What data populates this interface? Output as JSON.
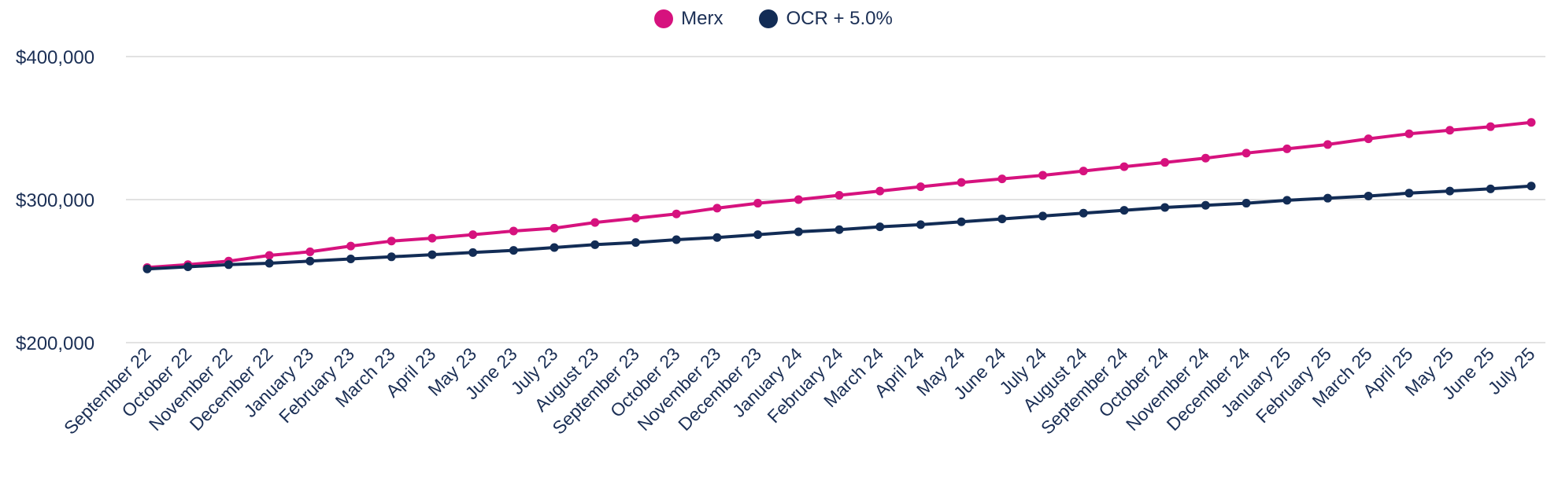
{
  "chart_data": {
    "type": "line",
    "categories": [
      "September 22",
      "October 22",
      "November 22",
      "December 22",
      "January 23",
      "February 23",
      "March 23",
      "April 23",
      "May 23",
      "June 23",
      "July 23",
      "August 23",
      "September 23",
      "October 23",
      "November 23",
      "December 23",
      "January 24",
      "February 24",
      "March 24",
      "April 24",
      "May 24",
      "June 24",
      "July 24",
      "August 24",
      "September 24",
      "October 24",
      "November 24",
      "December 24",
      "January 25",
      "February 25",
      "March 25",
      "April 25",
      "May 25",
      "June 25",
      "July 25"
    ],
    "series": [
      {
        "name": "Merx",
        "color": "#d6127e",
        "values": [
          252500,
          254500,
          257000,
          261000,
          263500,
          267500,
          271000,
          273000,
          275500,
          278000,
          280000,
          284000,
          287000,
          290000,
          294000,
          297500,
          300000,
          303000,
          306000,
          309000,
          312000,
          314500,
          317000,
          320000,
          323000,
          326000,
          329000,
          332500,
          335500,
          338500,
          342500,
          346000,
          348500,
          351000,
          354000
        ]
      },
      {
        "name": "OCR + 5.0%",
        "color": "#122c55",
        "values": [
          251500,
          253000,
          254500,
          255500,
          257000,
          258500,
          260000,
          261500,
          263000,
          264500,
          266500,
          268500,
          270000,
          272000,
          273500,
          275500,
          277500,
          279000,
          281000,
          282500,
          284500,
          286500,
          288500,
          290500,
          292500,
          294500,
          296000,
          297500,
          299500,
          301000,
          302500,
          304500,
          306000,
          307500,
          309500
        ]
      }
    ],
    "ylim": [
      200000,
      400000
    ],
    "yticks": [
      200000,
      300000,
      400000
    ],
    "ytick_labels": [
      "$200,000",
      "$300,000",
      "$400,000"
    ],
    "grid": true,
    "legend_position": "top-center"
  }
}
